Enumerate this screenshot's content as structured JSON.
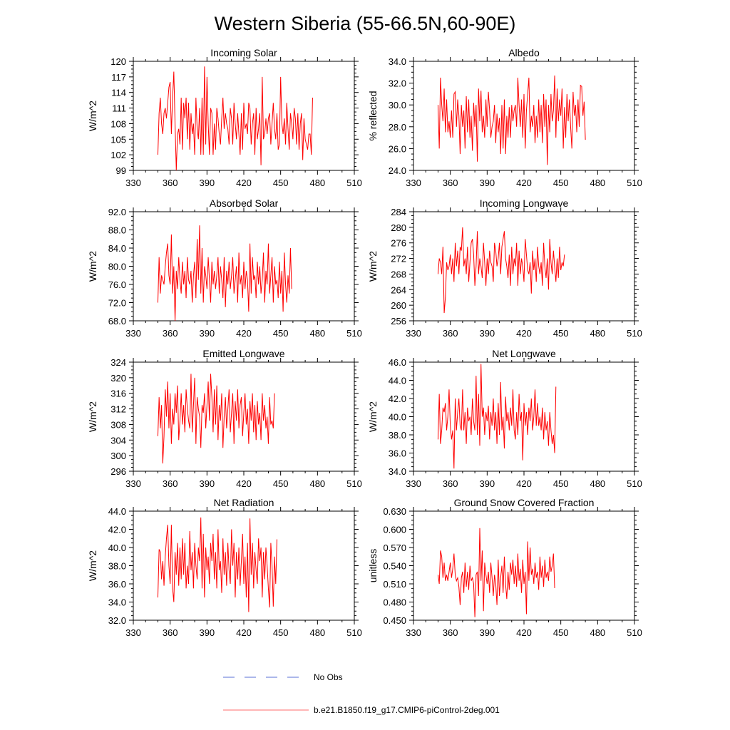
{
  "figure": {
    "title": "Western Siberia (55-66.5N,60-90E)",
    "legend": [
      {
        "label": "No Obs",
        "color": "#5a6fd6",
        "style": "dashed"
      },
      {
        "label": "b.e21.B1850.f19_g17.CMIP6-piControl-2deg.001",
        "color": "#ff6b6b",
        "style": "solid"
      }
    ],
    "series_color": "#ff0000"
  },
  "chart_data": [
    {
      "type": "line",
      "title": "Incoming Solar",
      "ylabel": "W/m^2",
      "xlabel": "",
      "xlim": [
        330,
        510
      ],
      "ylim": [
        99,
        120
      ],
      "xticks": [
        "330",
        "360",
        "390",
        "420",
        "450",
        "480",
        "510"
      ],
      "yticks": [
        "99",
        "102",
        "105",
        "108",
        "111",
        "114",
        "117",
        "120"
      ],
      "x_start": 350,
      "x_step": 1,
      "values": [
        102,
        110,
        113,
        108,
        106,
        110,
        111,
        109,
        112,
        115,
        116,
        106,
        113,
        118,
        108,
        99,
        106,
        107,
        104,
        113,
        103,
        112,
        109,
        113,
        105,
        112,
        103,
        110,
        106,
        108,
        102,
        113,
        107,
        105,
        111,
        102,
        113,
        102,
        119,
        104,
        117,
        108,
        102,
        111,
        110,
        102,
        108,
        103,
        111,
        109,
        106,
        104,
        109,
        113,
        107,
        110,
        108,
        107,
        104,
        111,
        109,
        104,
        112,
        108,
        105,
        110,
        106,
        102,
        110,
        103,
        112,
        107,
        108,
        106,
        112,
        111,
        104,
        108,
        110,
        102,
        111,
        105,
        107,
        110,
        100,
        117,
        105,
        106,
        109,
        106,
        109,
        110,
        104,
        108,
        112,
        107,
        105,
        110,
        103,
        104,
        117,
        108,
        106,
        109,
        104,
        112,
        107,
        103,
        110,
        108,
        105,
        111,
        109,
        104,
        110,
        103,
        108,
        110,
        101,
        109,
        105,
        104,
        103,
        106,
        106,
        102,
        113
      ]
    },
    {
      "type": "line",
      "title": "Albedo",
      "ylabel": "% reflected",
      "xlabel": "",
      "xlim": [
        330,
        510
      ],
      "ylim": [
        24.0,
        34.0
      ],
      "xticks": [
        "330",
        "360",
        "390",
        "420",
        "450",
        "480",
        "510"
      ],
      "yticks": [
        "24.0",
        "26.0",
        "28.0",
        "30.0",
        "32.0",
        "34.0"
      ],
      "x_start": 350,
      "x_step": 1,
      "values": [
        30,
        26,
        32.5,
        30,
        28.5,
        31.5,
        27.5,
        30.5,
        27.5,
        28.5,
        27,
        29.5,
        27,
        31,
        31.2,
        28,
        30.5,
        29,
        25.5,
        30,
        28,
        29.5,
        26,
        30.8,
        27.5,
        30.5,
        27,
        29,
        25.8,
        30.2,
        28,
        30,
        24.8,
        31.5,
        28.5,
        31.3,
        27.5,
        29,
        27,
        30.5,
        28,
        31.2,
        29.5,
        27,
        28,
        28.5,
        30,
        26.5,
        29.2,
        27.5,
        28.8,
        25.5,
        30,
        26,
        30.5,
        25.5,
        29,
        27,
        29.8,
        27,
        30,
        28.5,
        29.5,
        30,
        28,
        32.5,
        30,
        28,
        30.5,
        27,
        31,
        26,
        29.5,
        31,
        32.5,
        27.5,
        29,
        28,
        30,
        26.5,
        29,
        27,
        30.5,
        27.5,
        30,
        26.5,
        31,
        28,
        30.5,
        24.5,
        30,
        27.5,
        31,
        28.5,
        29.5,
        32.7,
        27,
        31.5,
        28.5,
        30.5,
        29,
        31.5,
        26,
        29.8,
        27,
        31,
        28.5,
        30.5,
        28,
        26,
        31.2,
        29,
        30,
        27.5,
        30.5,
        28,
        31.8,
        31.7,
        29,
        30.3,
        26.8
      ]
    },
    {
      "type": "line",
      "title": "Absorbed Solar",
      "ylabel": "W/m^2",
      "xlabel": "",
      "xlim": [
        330,
        510
      ],
      "ylim": [
        68.0,
        92.0
      ],
      "xticks": [
        "330",
        "360",
        "390",
        "420",
        "450",
        "480",
        "510"
      ],
      "yticks": [
        "68.0",
        "72.0",
        "76.0",
        "80.0",
        "84.0",
        "88.0",
        "92.0"
      ],
      "x_start": 350,
      "x_step": 1,
      "values": [
        72,
        82,
        74,
        78,
        77,
        76,
        80,
        83,
        85,
        78,
        76,
        87,
        74,
        80,
        68,
        79,
        75,
        82,
        77,
        74,
        81,
        76,
        79,
        73,
        82,
        77,
        76,
        79,
        72,
        78,
        81,
        73,
        86,
        77,
        89,
        74,
        84,
        72,
        80,
        78,
        75,
        82,
        77,
        72,
        81,
        76,
        79,
        75,
        78,
        82,
        74,
        80,
        77,
        73,
        82,
        71,
        79,
        76,
        81,
        75,
        78,
        82,
        74,
        77,
        80,
        72,
        83,
        76,
        78,
        73,
        81,
        75,
        79,
        77,
        70,
        85,
        74,
        82,
        77,
        78,
        73,
        81,
        76,
        80,
        74,
        77,
        83,
        72,
        79,
        76,
        85,
        74,
        78,
        82,
        72,
        80,
        76,
        77,
        73,
        81,
        74,
        79,
        70,
        83,
        76,
        72,
        78,
        74,
        84,
        75
      ]
    },
    {
      "type": "line",
      "title": "Incoming Longwave",
      "ylabel": "W/m^2",
      "xlabel": "",
      "xlim": [
        330,
        510
      ],
      "ylim": [
        256,
        284
      ],
      "xticks": [
        "330",
        "360",
        "390",
        "420",
        "450",
        "480",
        "510"
      ],
      "yticks": [
        "256",
        "260",
        "264",
        "268",
        "272",
        "276",
        "280",
        "284"
      ],
      "x_start": 350,
      "x_step": 1,
      "values": [
        268,
        272,
        271,
        268,
        275,
        258,
        262,
        271,
        269,
        270,
        273,
        268,
        272,
        266,
        276,
        270,
        274,
        268,
        275,
        274,
        280,
        270,
        272,
        268,
        275,
        266,
        271,
        276,
        277,
        273,
        265,
        270,
        279,
        268,
        272,
        270,
        267,
        276,
        271,
        265,
        272,
        268,
        274,
        271,
        270,
        266,
        276,
        274,
        270,
        272,
        276,
        268,
        275,
        277,
        279,
        272,
        270,
        267,
        273,
        265,
        275,
        268,
        272,
        270,
        276,
        265,
        274,
        268,
        272,
        270,
        266,
        277,
        273,
        269,
        268,
        271,
        263,
        274,
        269,
        272,
        266,
        275,
        270,
        268,
        271,
        265,
        276,
        270,
        267,
        272,
        264,
        277,
        271,
        268,
        274,
        270,
        266,
        272,
        267,
        275,
        269,
        271,
        270,
        273
      ]
    },
    {
      "type": "line",
      "title": "Emitted Longwave",
      "ylabel": "W/m^2",
      "xlabel": "",
      "xlim": [
        330,
        510
      ],
      "ylim": [
        296,
        324
      ],
      "xticks": [
        "330",
        "360",
        "390",
        "420",
        "450",
        "480",
        "510"
      ],
      "yticks": [
        "296",
        "300",
        "304",
        "308",
        "312",
        "316",
        "320",
        "324"
      ],
      "x_start": 350,
      "x_step": 1,
      "values": [
        305,
        315,
        307,
        313,
        298,
        305,
        317,
        310,
        319,
        307,
        316,
        303,
        312,
        308,
        316,
        311,
        318,
        304,
        309,
        316,
        308,
        313,
        306,
        317,
        312,
        309,
        307,
        321,
        306,
        313,
        320,
        303,
        315,
        312,
        310,
        302,
        313,
        311,
        316,
        307,
        313,
        319,
        309,
        321,
        315,
        306,
        317,
        308,
        318,
        304,
        313,
        309,
        316,
        302,
        310,
        315,
        307,
        312,
        317,
        306,
        311,
        316,
        303,
        314,
        309,
        317,
        307,
        313,
        315,
        305,
        311,
        316,
        308,
        312,
        303,
        314,
        309,
        316,
        306,
        313,
        304,
        314,
        308,
        311,
        304,
        316,
        309,
        313,
        307,
        310,
        303,
        315,
        308,
        309,
        307,
        316
      ]
    },
    {
      "type": "line",
      "title": "Net Longwave",
      "ylabel": "W/m^2",
      "xlabel": "",
      "xlim": [
        330,
        510
      ],
      "ylim": [
        34.0,
        46.0
      ],
      "xticks": [
        "330",
        "360",
        "390",
        "420",
        "450",
        "480",
        "510"
      ],
      "yticks": [
        "34.0",
        "36.0",
        "38.0",
        "40.0",
        "42.0",
        "44.0",
        "46.0"
      ],
      "x_start": 350,
      "x_step": 1,
      "values": [
        37.5,
        42.5,
        37,
        38.5,
        41,
        40.5,
        41.5,
        38.5,
        40,
        43,
        39,
        37.5,
        38.5,
        34.3,
        42,
        38.5,
        40.5,
        42,
        39,
        38.5,
        43,
        38.5,
        40.5,
        37,
        41,
        39.5,
        40,
        38,
        42,
        39.5,
        38.5,
        44.5,
        38,
        42.5,
        36.8,
        45.8,
        40,
        41,
        38,
        40.5,
        39.5,
        41.2,
        37.5,
        40.5,
        39,
        42,
        38.5,
        40.5,
        37,
        41.5,
        38,
        43.8,
        38.5,
        40,
        36.5,
        42.2,
        39.5,
        40.5,
        38.5,
        41,
        39,
        43,
        38.5,
        37.5,
        40.5,
        38,
        42.5,
        39.5,
        40.5,
        35.2,
        41.5,
        39,
        40.5,
        38,
        41,
        39.5,
        42,
        38.5,
        40,
        43,
        39,
        41.5,
        39,
        40,
        38.5,
        41,
        37.5,
        40.5,
        38.5,
        39.5,
        36.8,
        40.5,
        38.5,
        37,
        38,
        36,
        43.3
      ]
    },
    {
      "type": "line",
      "title": "Net Radiation",
      "ylabel": "W/m^2",
      "xlabel": "",
      "xlim": [
        330,
        510
      ],
      "ylim": [
        32.0,
        44.0
      ],
      "xticks": [
        "330",
        "360",
        "390",
        "420",
        "450",
        "480",
        "510"
      ],
      "yticks": [
        "32.0",
        "34.0",
        "36.0",
        "38.0",
        "40.0",
        "42.0",
        "44.0"
      ],
      "x_start": 350,
      "x_step": 1,
      "values": [
        34.5,
        39.8,
        39.5,
        36.5,
        38.5,
        35.8,
        39,
        41,
        42.5,
        38,
        36,
        42.5,
        35.5,
        34,
        39.5,
        37,
        40.5,
        35.8,
        40,
        36.5,
        41,
        37,
        40.5,
        35.5,
        38,
        36,
        41.8,
        37.5,
        39.5,
        35.5,
        40.5,
        38,
        36.5,
        40,
        38.5,
        43.3,
        35.5,
        41.5,
        34.5,
        40,
        37.5,
        39,
        36,
        40.5,
        38.5,
        41.5,
        36.5,
        39.5,
        35.5,
        42,
        37.5,
        38.5,
        35,
        41,
        37,
        39.5,
        35.8,
        40.5,
        37.5,
        36,
        42,
        38,
        40.5,
        34.5,
        39.5,
        36.5,
        40,
        35.8,
        38.5,
        41.5,
        36,
        39,
        34.5,
        40.5,
        32.9,
        43.2,
        37,
        40.5,
        35.5,
        39.5,
        37.5,
        36,
        41,
        38.5,
        40,
        34.5,
        39.5,
        36.5,
        40,
        38,
        35.5,
        33.4,
        40.5,
        38,
        33.5,
        39,
        36,
        40.9
      ]
    },
    {
      "type": "line",
      "title": "Ground Snow Covered Fraction",
      "ylabel": "unitless",
      "xlabel": "",
      "xlim": [
        330,
        510
      ],
      "ylim": [
        0.45,
        0.63
      ],
      "xticks": [
        "330",
        "360",
        "390",
        "420",
        "450",
        "480",
        "510"
      ],
      "yticks": [
        "0.450",
        "0.480",
        "0.510",
        "0.540",
        "0.570",
        "0.600",
        "0.630"
      ],
      "x_start": 350,
      "x_step": 1,
      "values": [
        0.525,
        0.51,
        0.565,
        0.555,
        0.52,
        0.545,
        0.515,
        0.525,
        0.515,
        0.53,
        0.545,
        0.52,
        0.535,
        0.56,
        0.525,
        0.515,
        0.52,
        0.505,
        0.475,
        0.52,
        0.53,
        0.495,
        0.545,
        0.505,
        0.53,
        0.5,
        0.54,
        0.515,
        0.52,
        0.51,
        0.455,
        0.525,
        0.53,
        0.49,
        0.602,
        0.515,
        0.565,
        0.465,
        0.545,
        0.525,
        0.51,
        0.53,
        0.495,
        0.545,
        0.52,
        0.49,
        0.525,
        0.51,
        0.475,
        0.55,
        0.49,
        0.52,
        0.54,
        0.495,
        0.555,
        0.51,
        0.485,
        0.53,
        0.5,
        0.545,
        0.525,
        0.55,
        0.51,
        0.54,
        0.505,
        0.56,
        0.515,
        0.535,
        0.495,
        0.55,
        0.51,
        0.53,
        0.46,
        0.58,
        0.515,
        0.57,
        0.525,
        0.535,
        0.51,
        0.545,
        0.52,
        0.53,
        0.5,
        0.555,
        0.52,
        0.54,
        0.505,
        0.55,
        0.52,
        0.53,
        0.515,
        0.555,
        0.53,
        0.54,
        0.56,
        0.503
      ]
    }
  ]
}
